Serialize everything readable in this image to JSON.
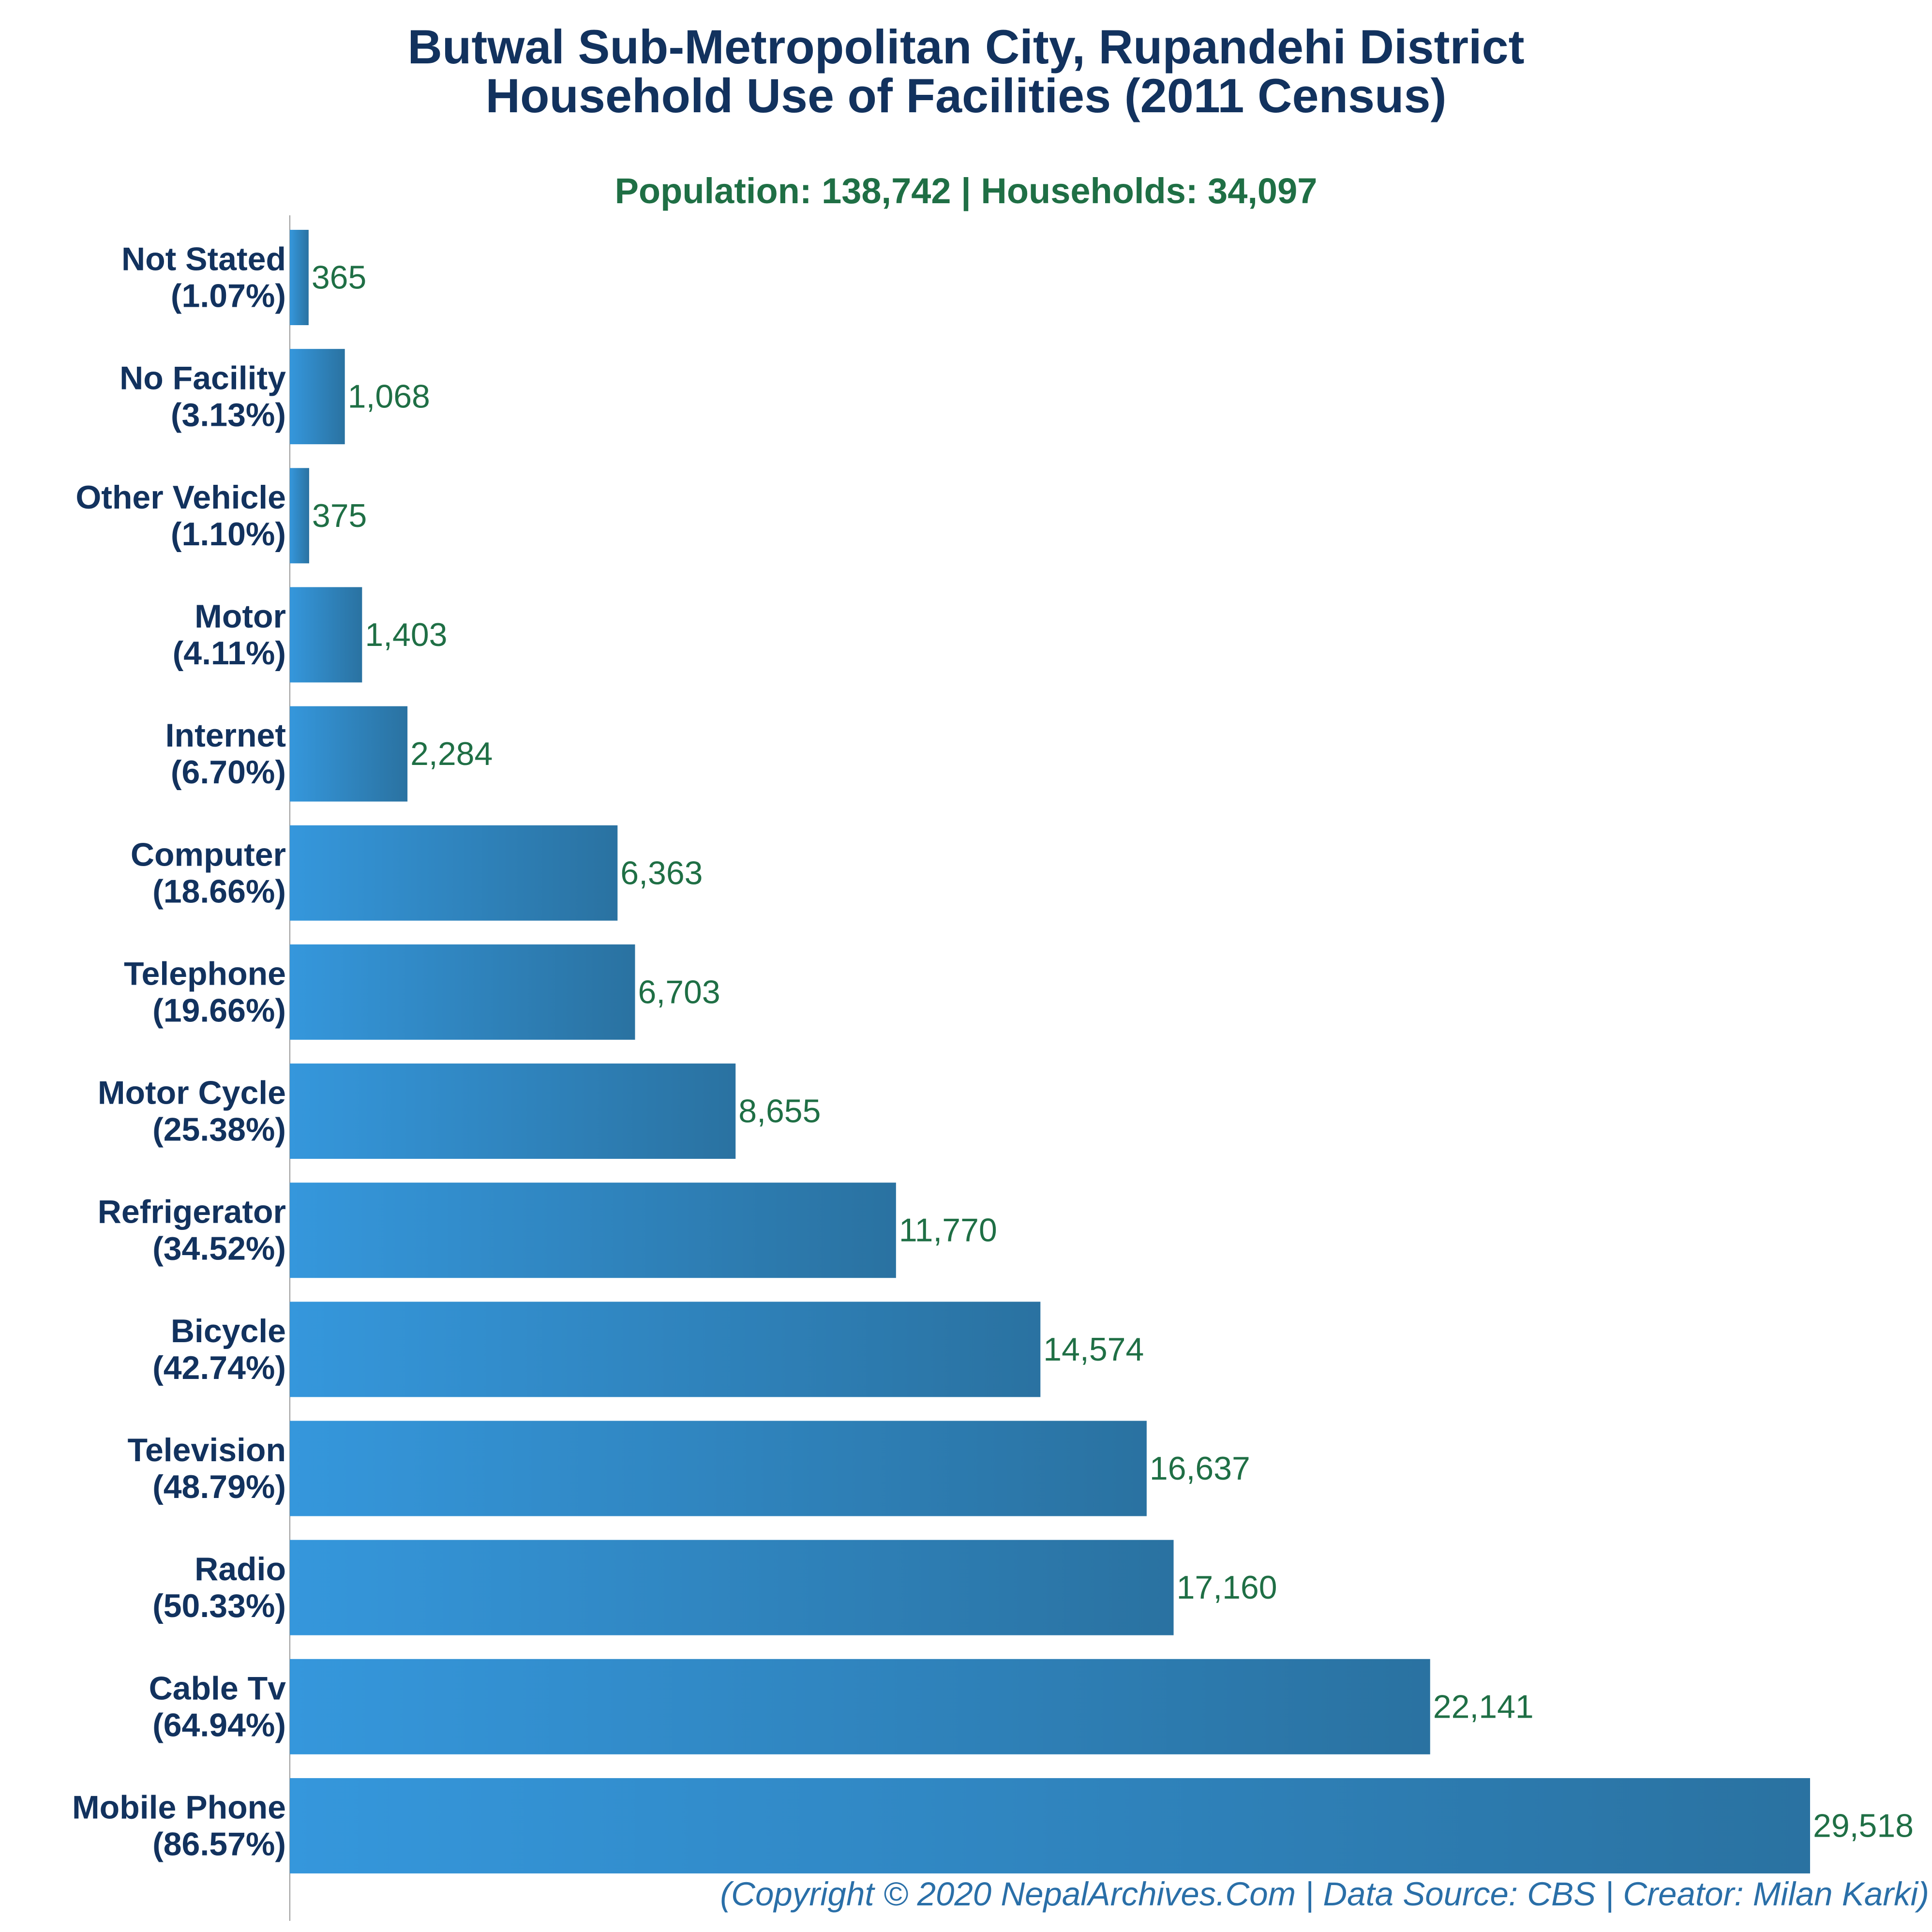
{
  "header": {
    "title_line1": "Butwal Sub-Metropolitan City, Rupandehi District",
    "title_line2": "Household Use of Facilities (2011 Census)",
    "subtitle": "Population: 138,742 | Households: 34,097"
  },
  "footer": {
    "credit": "(Copyright © 2020 NepalArchives.Com | Data Source: CBS | Creator: Milan Karki)"
  },
  "colors": {
    "bar_start": "#3597dc",
    "bar_end": "#2a72a1",
    "title": "#12325e",
    "category_label": "#12325e",
    "value_label": "#1f6f45",
    "axis": "#999999"
  },
  "chart_data": {
    "type": "bar",
    "orientation": "horizontal",
    "xlim": [
      0,
      29518
    ],
    "grid": false,
    "categories": [
      "Not Stated",
      "No Facility",
      "Other Vehicle",
      "Motor",
      "Internet",
      "Computer",
      "Telephone",
      "Motor Cycle",
      "Refrigerator",
      "Bicycle",
      "Television",
      "Radio",
      "Cable Tv",
      "Mobile Phone"
    ],
    "percent_labels": [
      "(1.07%)",
      "(3.13%)",
      "(1.10%)",
      "(4.11%)",
      "(6.70%)",
      "(18.66%)",
      "(19.66%)",
      "(25.38%)",
      "(34.52%)",
      "(42.74%)",
      "(48.79%)",
      "(50.33%)",
      "(64.94%)",
      "(86.57%)"
    ],
    "values": [
      365,
      1068,
      375,
      1403,
      2284,
      6363,
      6703,
      8655,
      11770,
      14574,
      16637,
      17160,
      22141,
      29518
    ],
    "value_labels": [
      "365",
      "1,068",
      "375",
      "1,403",
      "2,284",
      "6,363",
      "6,703",
      "8,655",
      "11,770",
      "14,574",
      "16,637",
      "17,160",
      "22,141",
      "29,518"
    ]
  }
}
